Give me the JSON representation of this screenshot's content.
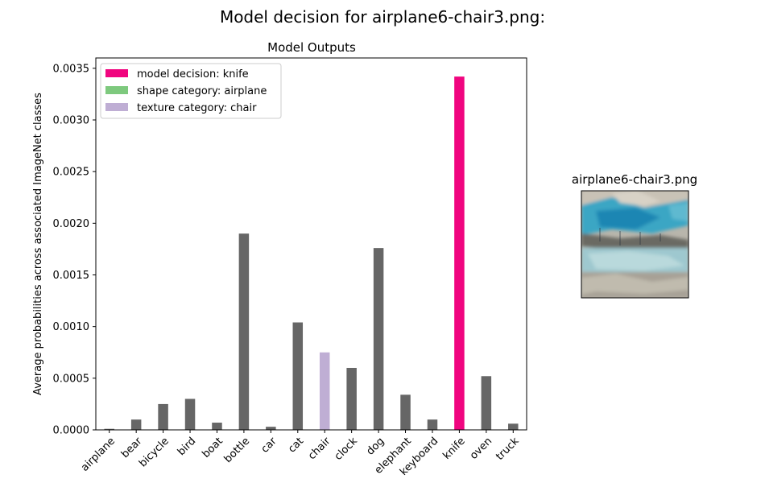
{
  "figure": {
    "suptitle": "Model decision for airplane6-chair3.png:"
  },
  "colors": {
    "model_decision": "#f0057f",
    "shape_category": "#7ec97e",
    "texture_category": "#bfaed4",
    "default_bar": "#666666"
  },
  "chart_data": {
    "type": "bar",
    "title": "Model Outputs",
    "xlabel": "",
    "ylabel": "Average probabilities across associated ImageNet classes",
    "ylim": [
      0,
      0.0036
    ],
    "yticks": [
      "0.0000",
      "0.0005",
      "0.0010",
      "0.0015",
      "0.0020",
      "0.0025",
      "0.0030",
      "0.0035"
    ],
    "categories": [
      "airplane",
      "bear",
      "bicycle",
      "bird",
      "boat",
      "bottle",
      "car",
      "cat",
      "chair",
      "clock",
      "dog",
      "elephant",
      "keyboard",
      "knife",
      "oven",
      "truck"
    ],
    "values": [
      1e-05,
      0.0001,
      0.00025,
      0.0003,
      7e-05,
      0.0019,
      3e-05,
      0.00104,
      0.00075,
      0.0006,
      0.00176,
      0.00034,
      0.0001,
      0.00342,
      0.00052,
      6e-05
    ],
    "highlight": {
      "knife": "model_decision",
      "chair": "texture_category"
    },
    "legend": {
      "placement": "top-left",
      "entries": [
        {
          "label": "model decision: knife",
          "color_key": "model_decision"
        },
        {
          "label": "shape category: airplane",
          "color_key": "shape_category"
        },
        {
          "label": "texture category: chair",
          "color_key": "texture_category"
        }
      ]
    },
    "grid": false
  },
  "image_panel": {
    "title": "airplane6-chair3.png",
    "description_icon": "stylized-airplane-texture-image"
  }
}
